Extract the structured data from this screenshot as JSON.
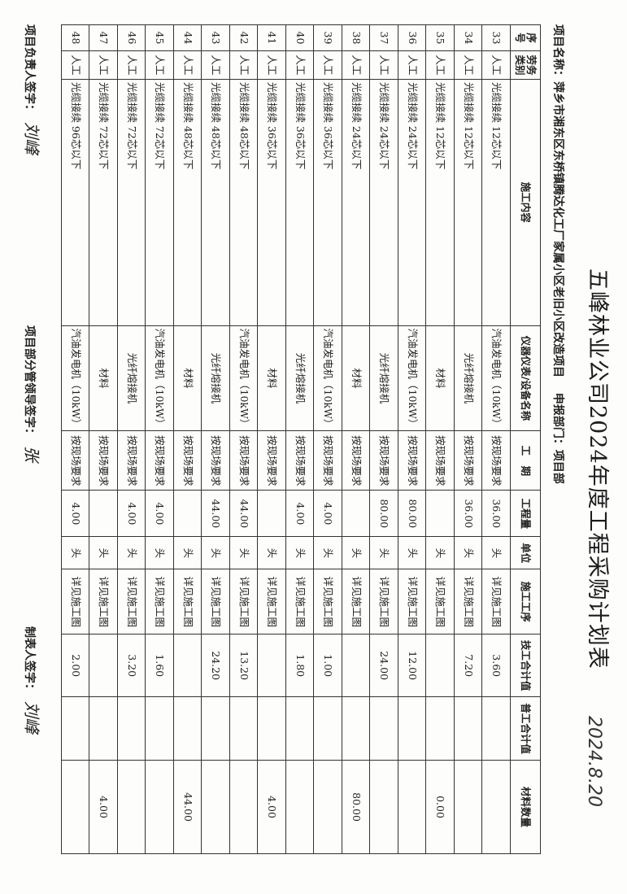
{
  "title": "五峰林业公司2024年度工程采购计划表",
  "handwritten_date": "2024.8.20",
  "project_label": "项目名称：",
  "project_name": "萍乡市湘东区东桥镇腾达化工厂家属小区老旧小区改造项目",
  "dept_label": "申报部门：",
  "dept": "项目部",
  "headers": [
    "序号",
    "劳务类别",
    "施工内容",
    "仪器仪表/设备名称",
    "工　期",
    "工程量",
    "单位",
    "施工工序",
    "技工合计值",
    "普工合计值",
    "材料数量"
  ],
  "rows": [
    [
      "33",
      "人工",
      "光缆接续 12芯以下",
      "汽油发电机（10kW）",
      "按现场要求",
      "36.00",
      "头",
      "详见施工图",
      "3.60",
      "",
      ""
    ],
    [
      "34",
      "人工",
      "光缆接续 12芯以下",
      "光纤熔接机",
      "按现场要求",
      "36.00",
      "头",
      "详见施工图",
      "7.20",
      "",
      ""
    ],
    [
      "35",
      "人工",
      "光缆接续 12芯以下",
      "材料",
      "按现场要求",
      "",
      "头",
      "详见施工图",
      "",
      "",
      "0.00"
    ],
    [
      "36",
      "人工",
      "光缆接续 24芯以下",
      "汽油发电机（10kW）",
      "按现场要求",
      "80.00",
      "头",
      "详见施工图",
      "12.00",
      "",
      ""
    ],
    [
      "37",
      "人工",
      "光缆接续 24芯以下",
      "光纤熔接机",
      "按现场要求",
      "80.00",
      "头",
      "详见施工图",
      "24.00",
      "",
      ""
    ],
    [
      "38",
      "人工",
      "光缆接续 24芯以下",
      "材料",
      "按现场要求",
      "",
      "头",
      "详见施工图",
      "",
      "",
      "80.00"
    ],
    [
      "39",
      "人工",
      "光缆接续 36芯以下",
      "汽油发电机（10kW）",
      "按现场要求",
      "4.00",
      "头",
      "详见施工图",
      "1.00",
      "",
      ""
    ],
    [
      "40",
      "人工",
      "光缆接续 36芯以下",
      "光纤熔接机",
      "按现场要求",
      "4.00",
      "头",
      "详见施工图",
      "1.80",
      "",
      ""
    ],
    [
      "41",
      "人工",
      "光缆接续 36芯以下",
      "材料",
      "按现场要求",
      "",
      "头",
      "详见施工图",
      "",
      "",
      "4.00"
    ],
    [
      "42",
      "人工",
      "光缆接续 48芯以下",
      "汽油发电机（10kW）",
      "按现场要求",
      "44.00",
      "头",
      "详见施工图",
      "13.20",
      "",
      ""
    ],
    [
      "43",
      "人工",
      "光缆接续 48芯以下",
      "光纤熔接机",
      "按现场要求",
      "44.00",
      "头",
      "详见施工图",
      "24.20",
      "",
      ""
    ],
    [
      "44",
      "人工",
      "光缆接续 48芯以下",
      "材料",
      "按现场要求",
      "",
      "头",
      "详见施工图",
      "",
      "",
      "44.00"
    ],
    [
      "45",
      "人工",
      "光缆接续 72芯以下",
      "汽油发电机（10kW）",
      "按现场要求",
      "4.00",
      "头",
      "详见施工图",
      "1.60",
      "",
      ""
    ],
    [
      "46",
      "人工",
      "光缆接续 72芯以下",
      "光纤熔接机",
      "按现场要求",
      "4.00",
      "头",
      "详见施工图",
      "3.20",
      "",
      ""
    ],
    [
      "47",
      "人工",
      "光缆接续 72芯以下",
      "材料",
      "按现场要求",
      "",
      "头",
      "详见施工图",
      "",
      "",
      "4.00"
    ],
    [
      "48",
      "人工",
      "光缆接续 96芯以下",
      "汽油发电机（10kW）",
      "按现场要求",
      "4.00",
      "头",
      "详见施工图",
      "2.00",
      "",
      ""
    ]
  ],
  "footer": {
    "leader_label": "项目负责人签字：",
    "leader_sig": "刘峰",
    "manager_label": "项目部分管领导签字：",
    "manager_sig": "张",
    "maker_label": "制表人签字：",
    "maker_sig": "刘峰"
  }
}
